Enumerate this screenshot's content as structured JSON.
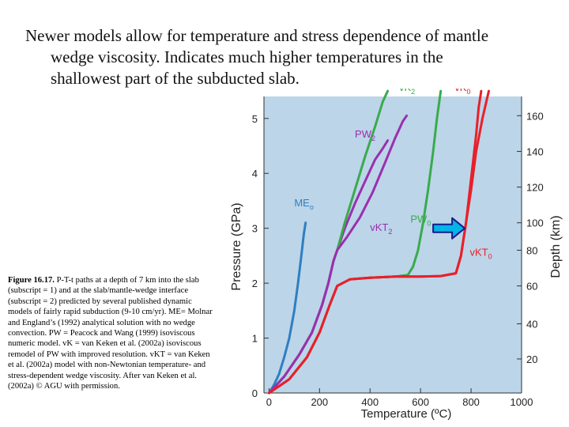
{
  "slide": {
    "heading_line1": "Newer models allow for temperature and stress dependence of mantle",
    "heading_line2": "wedge viscosity. Indicates much higher temperatures in the",
    "heading_line3": "shallowest part of the subducted slab.",
    "caption_label": "Figure 16.17.",
    "caption_text": "P-T-t paths at a depth of 7 km into the slab (subscript = 1) and at the slab/mantle-wedge interface (subscript = 2) predicted by several published dynamic models of fairly rapid subduction (9-10 cm/yr). ME= Molnar and England’s (1992) analytical solution with no wedge convection. PW = Peacock and Wang (1999) isoviscous numeric model. vK = van Keken et al. (2002a) isoviscous remodel of PW with improved resolution. vKT = van Keken et al. (2002a) model with non-Newtonian temperature- and stress-dependent wedge viscosity. After van Keken et al. (2002a) © AGU with permission."
  },
  "chart_data": {
    "type": "line",
    "xlabel": "Temperature (ºC)",
    "ylabel": "Pressure (GPa)",
    "y2label": "Depth (km)",
    "xlim": [
      -20,
      1000
    ],
    "ylim": [
      0,
      5.4
    ],
    "xticks": [
      "0",
      "200",
      "400",
      "600",
      "800",
      "1000"
    ],
    "xtick_values": [
      0,
      200,
      400,
      600,
      800,
      1000
    ],
    "yticks": [
      "0",
      "1",
      "2",
      "3",
      "4",
      "5"
    ],
    "ytick_values": [
      0,
      1,
      2,
      3,
      4,
      5
    ],
    "y2ticks": [
      "20",
      "40",
      "60",
      "80",
      "100",
      "120",
      "140",
      "160"
    ],
    "y2tick_values": [
      0.62,
      1.26,
      1.95,
      2.6,
      3.1,
      3.75,
      4.4,
      5.05
    ],
    "colors": {
      "background": "#bcd5e8",
      "blue": "#2f7ec2",
      "green": "#3aaa4d",
      "purple": "#9b2fb0",
      "red": "#e8202a",
      "arrow_fill": "#00b5e8",
      "arrow_outline": "#1a1a8a"
    },
    "series": [
      {
        "name": "ME",
        "sub": "o",
        "color": "blue",
        "label_at": [
          100,
          3.4
        ],
        "points": [
          [
            0,
            0
          ],
          [
            20,
            0.15
          ],
          [
            40,
            0.35
          ],
          [
            60,
            0.65
          ],
          [
            80,
            1.0
          ],
          [
            100,
            1.5
          ],
          [
            115,
            2.0
          ],
          [
            128,
            2.5
          ],
          [
            138,
            2.9
          ],
          [
            145,
            3.1
          ]
        ]
      },
      {
        "name": "PW",
        "sub": "2",
        "color": "purple",
        "label_at": [
          340,
          4.65
        ],
        "points": [
          [
            0,
            0
          ],
          [
            60,
            0.3
          ],
          [
            120,
            0.7
          ],
          [
            170,
            1.1
          ],
          [
            210,
            1.6
          ],
          [
            235,
            2.0
          ],
          [
            255,
            2.4
          ],
          [
            270,
            2.6
          ],
          [
            300,
            3.0
          ],
          [
            340,
            3.45
          ],
          [
            380,
            3.85
          ],
          [
            420,
            4.25
          ],
          [
            450,
            4.45
          ],
          [
            470,
            4.6
          ]
        ]
      },
      {
        "name": "vK",
        "sub": "2",
        "color": "green",
        "label_at": [
          515,
          5.5
        ],
        "points": [
          [
            0,
            0
          ],
          [
            60,
            0.3
          ],
          [
            120,
            0.7
          ],
          [
            170,
            1.1
          ],
          [
            210,
            1.6
          ],
          [
            235,
            2.0
          ],
          [
            255,
            2.4
          ],
          [
            270,
            2.6
          ],
          [
            300,
            3.1
          ],
          [
            340,
            3.7
          ],
          [
            380,
            4.3
          ],
          [
            420,
            4.85
          ],
          [
            450,
            5.3
          ],
          [
            470,
            5.5
          ]
        ]
      },
      {
        "name": "vKT",
        "sub": "2",
        "color": "purple",
        "label_at": [
          400,
          2.95
        ],
        "points": [
          [
            0,
            0
          ],
          [
            60,
            0.3
          ],
          [
            120,
            0.7
          ],
          [
            170,
            1.1
          ],
          [
            210,
            1.6
          ],
          [
            235,
            2.0
          ],
          [
            255,
            2.4
          ],
          [
            270,
            2.6
          ],
          [
            310,
            2.85
          ],
          [
            360,
            3.2
          ],
          [
            410,
            3.65
          ],
          [
            460,
            4.2
          ],
          [
            500,
            4.65
          ],
          [
            530,
            4.95
          ],
          [
            545,
            5.05
          ]
        ]
      },
      {
        "name": "PW",
        "sub": "0",
        "color": "green",
        "label_at": [
          560,
          3.1
        ],
        "points": [
          [
            0,
            0
          ],
          [
            80,
            0.25
          ],
          [
            150,
            0.65
          ],
          [
            200,
            1.1
          ],
          [
            240,
            1.6
          ],
          [
            270,
            1.95
          ],
          [
            320,
            2.07
          ],
          [
            400,
            2.1
          ],
          [
            500,
            2.12
          ],
          [
            550,
            2.15
          ],
          [
            570,
            2.3
          ],
          [
            590,
            2.6
          ],
          [
            610,
            3.1
          ],
          [
            630,
            3.7
          ],
          [
            650,
            4.4
          ],
          [
            665,
            5.0
          ],
          [
            680,
            5.5
          ]
        ]
      },
      {
        "name": "vK",
        "sub": "0",
        "color": "red",
        "label_at": [
          735,
          5.5
        ],
        "points": [
          [
            0,
            0
          ],
          [
            80,
            0.25
          ],
          [
            150,
            0.65
          ],
          [
            200,
            1.1
          ],
          [
            240,
            1.6
          ],
          [
            270,
            1.95
          ],
          [
            320,
            2.07
          ],
          [
            400,
            2.1
          ],
          [
            500,
            2.12
          ],
          [
            600,
            2.12
          ],
          [
            680,
            2.13
          ],
          [
            740,
            2.18
          ],
          [
            760,
            2.5
          ],
          [
            780,
            3.1
          ],
          [
            800,
            3.9
          ],
          [
            820,
            4.7
          ],
          [
            830,
            5.2
          ],
          [
            840,
            5.5
          ]
        ]
      },
      {
        "name": "vKT",
        "sub": "0",
        "color": "red",
        "label_at": [
          795,
          2.5
        ],
        "points": [
          [
            0,
            0
          ],
          [
            80,
            0.25
          ],
          [
            150,
            0.65
          ],
          [
            200,
            1.1
          ],
          [
            240,
            1.6
          ],
          [
            270,
            1.95
          ],
          [
            320,
            2.07
          ],
          [
            400,
            2.1
          ],
          [
            500,
            2.12
          ],
          [
            600,
            2.12
          ],
          [
            680,
            2.13
          ],
          [
            740,
            2.18
          ],
          [
            760,
            2.5
          ],
          [
            780,
            3.1
          ],
          [
            800,
            3.7
          ],
          [
            820,
            4.4
          ],
          [
            845,
            5.0
          ],
          [
            870,
            5.5
          ]
        ]
      }
    ]
  }
}
